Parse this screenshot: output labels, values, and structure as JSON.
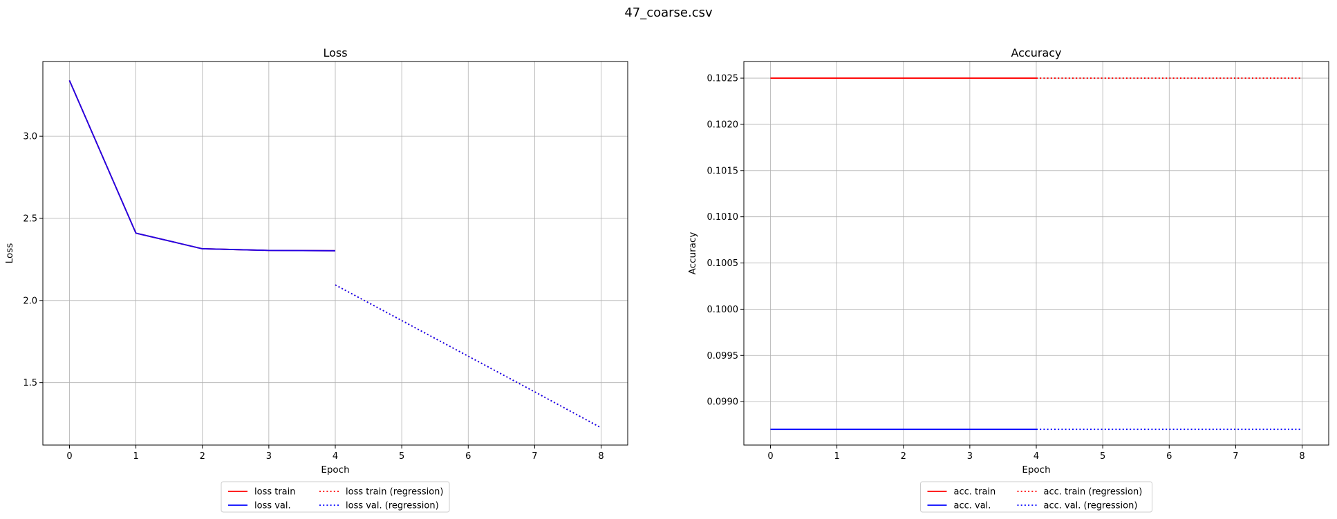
{
  "figure": {
    "suptitle": "47_coarse.csv"
  },
  "chart_data": [
    {
      "type": "line",
      "title": "Loss",
      "xlabel": "Epoch",
      "ylabel": "Loss",
      "xlim": [
        -0.4,
        8.4
      ],
      "ylim": [
        1.12,
        3.455
      ],
      "xticks": [
        0,
        1,
        2,
        3,
        4,
        5,
        6,
        7,
        8
      ],
      "yticks": [
        1.5,
        2.0,
        2.5,
        3.0
      ],
      "ytick_labels": [
        "1.5",
        "2.0",
        "2.5",
        "3.0"
      ],
      "grid": true,
      "legend": {
        "placement": "below-center",
        "ncol": 2
      },
      "series": [
        {
          "name": "loss train",
          "color": "#ff0000",
          "style": "solid",
          "x": [
            0,
            1,
            2,
            3,
            4
          ],
          "y": [
            3.34,
            2.41,
            2.315,
            2.305,
            2.303
          ]
        },
        {
          "name": "loss val.",
          "color": "#0000ff",
          "style": "solid",
          "x": [
            0,
            1,
            2,
            3,
            4
          ],
          "y": [
            3.34,
            2.41,
            2.315,
            2.305,
            2.303
          ]
        },
        {
          "name": "loss train (regression)",
          "color": "#ff0000",
          "style": "dotted",
          "x": [
            4,
            5,
            6,
            7,
            8
          ],
          "y": [
            2.095,
            1.878,
            1.661,
            1.444,
            1.225
          ]
        },
        {
          "name": "loss val. (regression)",
          "color": "#0000ff",
          "style": "dotted",
          "x": [
            4,
            5,
            6,
            7,
            8
          ],
          "y": [
            2.095,
            1.878,
            1.661,
            1.444,
            1.225
          ]
        }
      ]
    },
    {
      "type": "line",
      "title": "Accuracy",
      "xlabel": "Epoch",
      "ylabel": "Accuracy",
      "xlim": [
        -0.4,
        8.4
      ],
      "ylim": [
        0.09853,
        0.10268
      ],
      "xticks": [
        0,
        1,
        2,
        3,
        4,
        5,
        6,
        7,
        8
      ],
      "yticks": [
        0.099,
        0.0995,
        0.1,
        0.1005,
        0.101,
        0.1015,
        0.102,
        0.1025
      ],
      "ytick_labels": [
        "0.0990",
        "0.0995",
        "0.1000",
        "0.1005",
        "0.1010",
        "0.1015",
        "0.1020",
        "0.1025"
      ],
      "grid": true,
      "legend": {
        "placement": "below-center",
        "ncol": 2
      },
      "series": [
        {
          "name": "acc. train",
          "color": "#ff0000",
          "style": "solid",
          "x": [
            0,
            1,
            2,
            3,
            4
          ],
          "y": [
            0.1025,
            0.1025,
            0.1025,
            0.1025,
            0.1025
          ]
        },
        {
          "name": "acc. val.",
          "color": "#0000ff",
          "style": "solid",
          "x": [
            0,
            1,
            2,
            3,
            4
          ],
          "y": [
            0.0987,
            0.0987,
            0.0987,
            0.0987,
            0.0987
          ]
        },
        {
          "name": "acc. train (regression)",
          "color": "#ff0000",
          "style": "dotted",
          "x": [
            4,
            5,
            6,
            7,
            8
          ],
          "y": [
            0.1025,
            0.1025,
            0.1025,
            0.1025,
            0.1025
          ]
        },
        {
          "name": "acc. val. (regression)",
          "color": "#0000ff",
          "style": "dotted",
          "x": [
            4,
            5,
            6,
            7,
            8
          ],
          "y": [
            0.0987,
            0.0987,
            0.0987,
            0.0987,
            0.0987
          ]
        }
      ]
    }
  ]
}
